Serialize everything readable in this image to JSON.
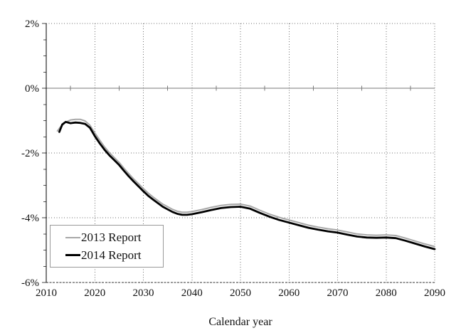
{
  "figure": {
    "background": "#ffffff"
  },
  "chart_data": {
    "type": "line",
    "title": "",
    "xlabel": "Calendar year",
    "ylabel": "",
    "xlim": [
      2010,
      2090
    ],
    "ylim": [
      -6,
      2
    ],
    "x_ticks": [
      2010,
      2020,
      2030,
      2040,
      2050,
      2060,
      2070,
      2080,
      2090
    ],
    "x_tick_labels": [
      "2010",
      "2020",
      "2030",
      "2040",
      "2050",
      "2060",
      "2070",
      "2080",
      "2090"
    ],
    "y_ticks": [
      2,
      0,
      -2,
      -4,
      -6
    ],
    "y_tick_labels": [
      "2%",
      "0%",
      "-2%",
      "-4%",
      "-6%"
    ],
    "y_minor_tick_step": 0.5,
    "zero_line_ticks": [
      2015,
      2025,
      2035,
      2045,
      2055,
      2065,
      2075,
      2085
    ],
    "grid": "dotted",
    "grid_color": "#6e6e6e",
    "zero_line_color": "#7a7a7a",
    "axis_color": "#000000",
    "bottom_axis_color": "#333333",
    "legend_position": "lower-left",
    "legend_border_color": "#999999",
    "series": [
      {
        "name": "2013 Report",
        "color": "#a8a8a8",
        "width": 2,
        "points": [
          [
            2012.3,
            -1.32
          ],
          [
            2013,
            -1.18
          ],
          [
            2014,
            -1.05
          ],
          [
            2015,
            -0.98
          ],
          [
            2016,
            -0.96
          ],
          [
            2017,
            -0.96
          ],
          [
            2018,
            -1.01
          ],
          [
            2019,
            -1.14
          ],
          [
            2020,
            -1.38
          ],
          [
            2021,
            -1.6
          ],
          [
            2022,
            -1.81
          ],
          [
            2023,
            -1.99
          ],
          [
            2024,
            -2.14
          ],
          [
            2025,
            -2.29
          ],
          [
            2026,
            -2.47
          ],
          [
            2027,
            -2.64
          ],
          [
            2028,
            -2.8
          ],
          [
            2029,
            -2.95
          ],
          [
            2030,
            -3.1
          ],
          [
            2031,
            -3.24
          ],
          [
            2032,
            -3.36
          ],
          [
            2033,
            -3.47
          ],
          [
            2034,
            -3.58
          ],
          [
            2035,
            -3.66
          ],
          [
            2036,
            -3.74
          ],
          [
            2037,
            -3.8
          ],
          [
            2038,
            -3.83
          ],
          [
            2039,
            -3.83
          ],
          [
            2040,
            -3.81
          ],
          [
            2042,
            -3.75
          ],
          [
            2044,
            -3.68
          ],
          [
            2046,
            -3.62
          ],
          [
            2048,
            -3.59
          ],
          [
            2050,
            -3.58
          ],
          [
            2052,
            -3.64
          ],
          [
            2054,
            -3.77
          ],
          [
            2056,
            -3.89
          ],
          [
            2058,
            -3.99
          ],
          [
            2060,
            -4.07
          ],
          [
            2062,
            -4.15
          ],
          [
            2064,
            -4.23
          ],
          [
            2066,
            -4.29
          ],
          [
            2068,
            -4.34
          ],
          [
            2070,
            -4.38
          ],
          [
            2072,
            -4.44
          ],
          [
            2074,
            -4.5
          ],
          [
            2076,
            -4.53
          ],
          [
            2078,
            -4.54
          ],
          [
            2080,
            -4.53
          ],
          [
            2082,
            -4.55
          ],
          [
            2084,
            -4.63
          ],
          [
            2086,
            -4.72
          ],
          [
            2088,
            -4.81
          ],
          [
            2090,
            -4.89
          ]
        ]
      },
      {
        "name": "2014 Report",
        "color": "#000000",
        "width": 2.8,
        "points": [
          [
            2012.7,
            -1.35
          ],
          [
            2013.3,
            -1.12
          ],
          [
            2014,
            -1.04
          ],
          [
            2015,
            -1.08
          ],
          [
            2016,
            -1.06
          ],
          [
            2017,
            -1.07
          ],
          [
            2018,
            -1.1
          ],
          [
            2019,
            -1.22
          ],
          [
            2020,
            -1.48
          ],
          [
            2021,
            -1.7
          ],
          [
            2022,
            -1.9
          ],
          [
            2023,
            -2.07
          ],
          [
            2024,
            -2.22
          ],
          [
            2025,
            -2.37
          ],
          [
            2026,
            -2.55
          ],
          [
            2027,
            -2.72
          ],
          [
            2028,
            -2.88
          ],
          [
            2029,
            -3.03
          ],
          [
            2030,
            -3.18
          ],
          [
            2031,
            -3.32
          ],
          [
            2032,
            -3.44
          ],
          [
            2033,
            -3.55
          ],
          [
            2034,
            -3.66
          ],
          [
            2035,
            -3.74
          ],
          [
            2036,
            -3.82
          ],
          [
            2037,
            -3.88
          ],
          [
            2038,
            -3.91
          ],
          [
            2039,
            -3.91
          ],
          [
            2040,
            -3.89
          ],
          [
            2042,
            -3.83
          ],
          [
            2044,
            -3.76
          ],
          [
            2046,
            -3.7
          ],
          [
            2048,
            -3.67
          ],
          [
            2050,
            -3.66
          ],
          [
            2052,
            -3.72
          ],
          [
            2054,
            -3.85
          ],
          [
            2056,
            -3.97
          ],
          [
            2058,
            -4.07
          ],
          [
            2060,
            -4.15
          ],
          [
            2062,
            -4.23
          ],
          [
            2064,
            -4.31
          ],
          [
            2066,
            -4.37
          ],
          [
            2068,
            -4.42
          ],
          [
            2070,
            -4.46
          ],
          [
            2072,
            -4.52
          ],
          [
            2074,
            -4.58
          ],
          [
            2076,
            -4.61
          ],
          [
            2078,
            -4.62
          ],
          [
            2080,
            -4.61
          ],
          [
            2082,
            -4.63
          ],
          [
            2084,
            -4.71
          ],
          [
            2086,
            -4.8
          ],
          [
            2088,
            -4.89
          ],
          [
            2090,
            -4.97
          ]
        ]
      }
    ]
  }
}
